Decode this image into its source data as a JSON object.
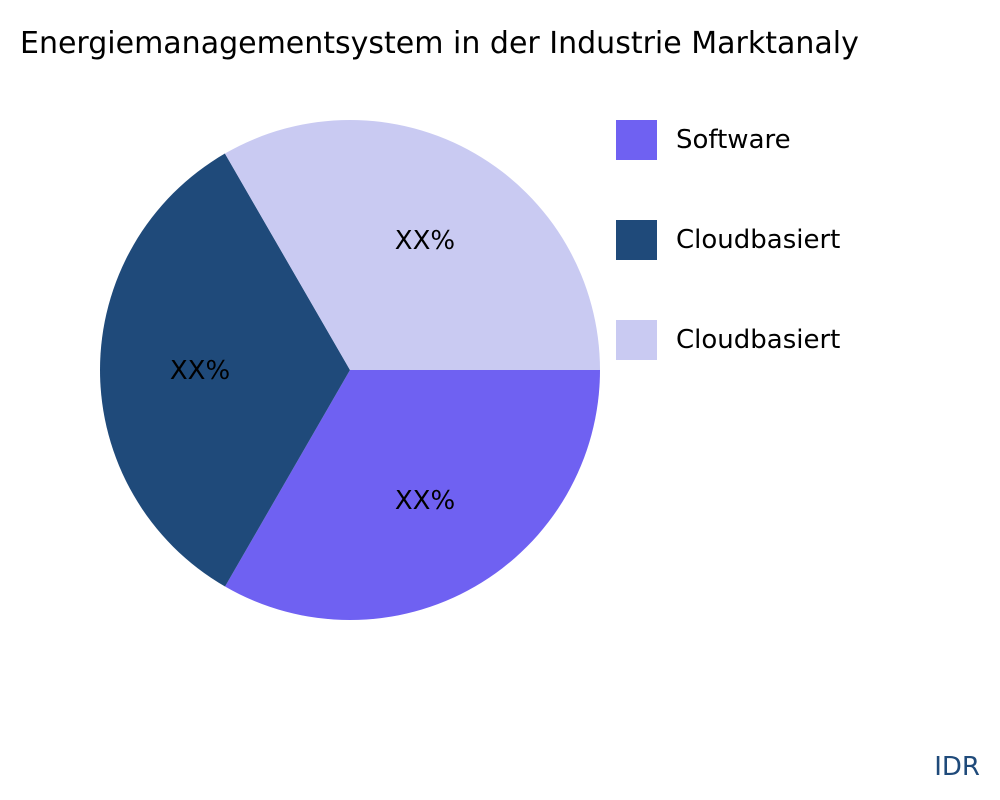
{
  "chart_data": {
    "type": "pie",
    "title": "Energiemanagementsystem in der Industrie Marktanaly",
    "slices": [
      {
        "label": "Software",
        "value": 33.33,
        "data_label": "XX%",
        "color": "#6f61f2"
      },
      {
        "label": "Cloudbasiert",
        "value": 33.33,
        "data_label": "XX%",
        "color": "#1f4a7a"
      },
      {
        "label": "Cloudbasiert",
        "value": 33.34,
        "data_label": "XX%",
        "color": "#c9caf2"
      }
    ],
    "legend_placement": "right",
    "start_angle": "3 o'clock",
    "direction": "clockwise"
  },
  "watermark": "IDR"
}
